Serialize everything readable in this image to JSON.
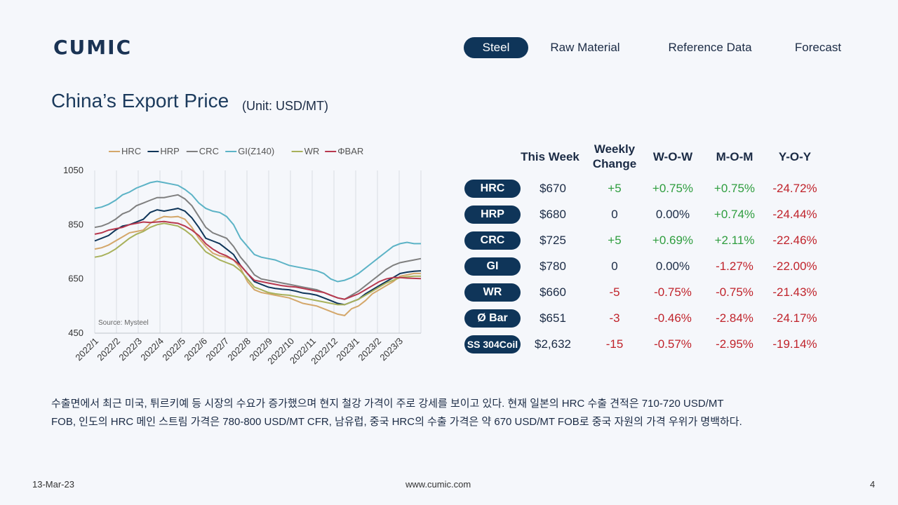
{
  "logo": "CUMIC",
  "nav": [
    {
      "label": "Steel",
      "active": true
    },
    {
      "label": "Raw Material",
      "active": false
    },
    {
      "label": "Reference Data",
      "active": false
    },
    {
      "label": "Forecast",
      "active": false
    }
  ],
  "page": {
    "title": "China’s Export Price",
    "unit": "(Unit: USD/MT)"
  },
  "chart_data": {
    "type": "line",
    "source": "Source: Mysteel",
    "ylim": [
      450,
      1050
    ],
    "yticks": [
      450,
      650,
      850,
      1050
    ],
    "x_labels": [
      "2022/1",
      "2022/2",
      "2022/3",
      "2022/4",
      "2022/5",
      "2022/6",
      "2022/7",
      "2022/8",
      "2022/9",
      "2022/10",
      "2022/11",
      "2022/12",
      "2023/1",
      "2023/2",
      "2023/3"
    ],
    "grid": "vertical",
    "legend": "top",
    "series": [
      {
        "name": "HRC",
        "color": "#d4a76a",
        "values": [
          760,
          765,
          775,
          790,
          805,
          820,
          825,
          830,
          855,
          870,
          880,
          878,
          880,
          870,
          840,
          800,
          770,
          745,
          735,
          730,
          720,
          690,
          640,
          610,
          600,
          595,
          590,
          585,
          580,
          570,
          560,
          555,
          550,
          540,
          530,
          520,
          515,
          540,
          550,
          570,
          595,
          610,
          625,
          640,
          660,
          665,
          670,
          670
        ]
      },
      {
        "name": "HRP",
        "color": "#0f3559",
        "values": [
          790,
          800,
          810,
          830,
          845,
          850,
          860,
          870,
          895,
          905,
          900,
          905,
          910,
          900,
          875,
          840,
          800,
          790,
          780,
          760,
          740,
          700,
          670,
          640,
          630,
          620,
          615,
          612,
          610,
          605,
          598,
          595,
          590,
          580,
          570,
          560,
          555,
          565,
          575,
          595,
          610,
          625,
          640,
          655,
          670,
          675,
          678,
          680
        ]
      },
      {
        "name": "CRC",
        "color": "#7f7f7f",
        "values": [
          840,
          845,
          855,
          870,
          890,
          900,
          920,
          930,
          940,
          950,
          950,
          955,
          960,
          945,
          920,
          880,
          840,
          820,
          810,
          800,
          770,
          730,
          700,
          665,
          650,
          645,
          640,
          635,
          630,
          625,
          620,
          615,
          610,
          600,
          590,
          580,
          575,
          590,
          605,
          625,
          645,
          665,
          685,
          700,
          710,
          715,
          720,
          725
        ]
      },
      {
        "name": "GI(Z140)",
        "color": "#5cb3c6",
        "values": [
          910,
          915,
          925,
          940,
          960,
          970,
          985,
          995,
          1005,
          1010,
          1005,
          1000,
          995,
          980,
          960,
          930,
          910,
          900,
          895,
          880,
          850,
          800,
          770,
          740,
          730,
          725,
          720,
          710,
          700,
          695,
          690,
          685,
          680,
          670,
          650,
          640,
          645,
          655,
          670,
          690,
          710,
          730,
          750,
          770,
          780,
          785,
          780,
          780
        ]
      },
      {
        "name": "WR",
        "color": "#a8b15a",
        "values": [
          730,
          735,
          745,
          760,
          780,
          800,
          815,
          825,
          840,
          850,
          855,
          850,
          845,
          830,
          810,
          780,
          750,
          735,
          720,
          710,
          700,
          680,
          650,
          620,
          610,
          600,
          595,
          592,
          590,
          585,
          580,
          575,
          570,
          565,
          560,
          555,
          555,
          565,
          575,
          590,
          605,
          620,
          635,
          645,
          655,
          658,
          660,
          660
        ]
      },
      {
        "name": "ΦBAR",
        "color": "#b8384e",
        "values": [
          815,
          820,
          830,
          835,
          840,
          850,
          855,
          860,
          858,
          860,
          862,
          858,
          855,
          845,
          830,
          810,
          780,
          760,
          745,
          735,
          720,
          700,
          670,
          645,
          640,
          635,
          630,
          625,
          622,
          620,
          615,
          610,
          605,
          600,
          590,
          580,
          575,
          585,
          595,
          610,
          625,
          640,
          650,
          655,
          655,
          653,
          652,
          651
        ]
      }
    ]
  },
  "table": {
    "headers": {
      "this_week": "This Week",
      "weekly_change_1": "Weekly",
      "weekly_change_2": "Change",
      "wow": "W-O-W",
      "mom": "M-O-M",
      "yoy": "Y-O-Y"
    },
    "rows": [
      {
        "product": "HRC",
        "price": "$670",
        "change": "+5",
        "wow": "+0.75%",
        "mom": "+0.75%",
        "yoy": "-24.72%"
      },
      {
        "product": "HRP",
        "price": "$680",
        "change": "0",
        "wow": "0.00%",
        "mom": "+0.74%",
        "yoy": "-24.44%"
      },
      {
        "product": "CRC",
        "price": "$725",
        "change": "+5",
        "wow": "+0.69%",
        "mom": "+2.11%",
        "yoy": "-22.46%"
      },
      {
        "product": "GI",
        "price": "$780",
        "change": "0",
        "wow": "0.00%",
        "mom": "-1.27%",
        "yoy": "-22.00%"
      },
      {
        "product": "WR",
        "price": "$660",
        "change": "-5",
        "wow": "-0.75%",
        "mom": "-0.75%",
        "yoy": "-21.43%"
      },
      {
        "product": "Ø Bar",
        "price": "$651",
        "change": "-3",
        "wow": "-0.46%",
        "mom": "-2.84%",
        "yoy": "-24.17%"
      },
      {
        "product": "SS 304Coil",
        "price": "$2,632",
        "change": "-15",
        "wow": "-0.57%",
        "mom": "-2.95%",
        "yoy": "-19.14%"
      }
    ]
  },
  "commentary": {
    "line1": "수출면에서 최근 미국, 튀르키예 등 시장의 수요가 증가했으며 현지 철강 가격이 주로 강세를 보이고 있다. 현재 일본의 HRC 수출 견적은 710-720 USD/MT",
    "line2": "FOB, 인도의 HRC 메인 스트림 가격은 780-800 USD/MT CFR, 남유럽, 중국 HRC의 수출 가격은 약 670 USD/MT FOB로 중국 자원의 가격 우위가 명백하다."
  },
  "footer": {
    "date": "13-Mar-23",
    "url": "www.cumic.com",
    "page": "4"
  },
  "colors": {
    "navy": "#0f3559",
    "positive": "#2e9d3e",
    "negative": "#c0232b"
  }
}
